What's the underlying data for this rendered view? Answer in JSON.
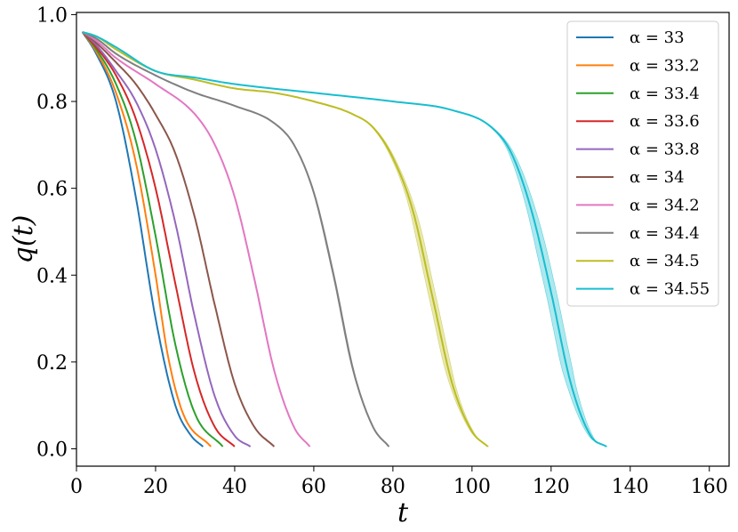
{
  "chart_data": {
    "type": "line",
    "xlabel": "t",
    "ylabel": "q(t)",
    "xlim": [
      0,
      165
    ],
    "ylim": [
      -0.04,
      1.005
    ],
    "xticks": [
      0,
      20,
      40,
      60,
      80,
      100,
      120,
      140,
      160
    ],
    "yticks": [
      0.0,
      0.2,
      0.4,
      0.6,
      0.8,
      1.0
    ],
    "xtick_labels": [
      "0",
      "20",
      "40",
      "60",
      "80",
      "100",
      "120",
      "140",
      "160"
    ],
    "ytick_labels": [
      "0.0",
      "0.2",
      "0.4",
      "0.6",
      "0.8",
      "1.0"
    ],
    "grid": false,
    "legend_position": "top-right",
    "series": [
      {
        "name": "α = 33",
        "color": "#1f77b4",
        "x_end": 32,
        "points": [
          [
            1.5,
            0.96
          ],
          [
            5,
            0.91
          ],
          [
            10,
            0.8
          ],
          [
            15,
            0.58
          ],
          [
            20,
            0.3
          ],
          [
            25,
            0.1
          ],
          [
            29,
            0.03
          ],
          [
            32,
            0.005
          ]
        ],
        "band": 0
      },
      {
        "name": "α = 33.2",
        "color": "#ff7f0e",
        "x_end": 34,
        "points": [
          [
            1.5,
            0.96
          ],
          [
            5,
            0.915
          ],
          [
            10,
            0.82
          ],
          [
            15,
            0.66
          ],
          [
            20,
            0.4
          ],
          [
            23,
            0.22
          ],
          [
            27,
            0.08
          ],
          [
            34,
            0.005
          ]
        ],
        "band": 0
      },
      {
        "name": "α = 33.4",
        "color": "#2ca02c",
        "x_end": 37,
        "points": [
          [
            1.5,
            0.96
          ],
          [
            5,
            0.92
          ],
          [
            10,
            0.84
          ],
          [
            15,
            0.71
          ],
          [
            20,
            0.49
          ],
          [
            25,
            0.24
          ],
          [
            30,
            0.08
          ],
          [
            37,
            0.005
          ]
        ],
        "band": 0
      },
      {
        "name": "α = 33.6",
        "color": "#d62728",
        "x_end": 40,
        "points": [
          [
            1.5,
            0.96
          ],
          [
            5,
            0.925
          ],
          [
            10,
            0.86
          ],
          [
            15,
            0.76
          ],
          [
            20,
            0.6
          ],
          [
            25,
            0.38
          ],
          [
            30,
            0.17
          ],
          [
            35,
            0.05
          ],
          [
            40,
            0.005
          ]
        ],
        "band": 0
      },
      {
        "name": "α = 33.8",
        "color": "#9467bd",
        "x_end": 44,
        "points": [
          [
            1.5,
            0.96
          ],
          [
            5,
            0.93
          ],
          [
            10,
            0.87
          ],
          [
            15,
            0.8
          ],
          [
            20,
            0.69
          ],
          [
            25,
            0.52
          ],
          [
            30,
            0.3
          ],
          [
            35,
            0.12
          ],
          [
            40,
            0.03
          ],
          [
            44,
            0.005
          ]
        ],
        "band": 0
      },
      {
        "name": "α = 34",
        "color": "#8c564b",
        "x_end": 50,
        "points": [
          [
            1.5,
            0.96
          ],
          [
            5,
            0.935
          ],
          [
            10,
            0.89
          ],
          [
            15,
            0.84
          ],
          [
            20,
            0.77
          ],
          [
            25,
            0.68
          ],
          [
            30,
            0.53
          ],
          [
            35,
            0.33
          ],
          [
            40,
            0.15
          ],
          [
            45,
            0.05
          ],
          [
            50,
            0.005
          ]
        ],
        "band": 0
      },
      {
        "name": "α = 34.2",
        "color": "#e377c2",
        "x_end": 59,
        "points": [
          [
            1.5,
            0.96
          ],
          [
            5,
            0.94
          ],
          [
            10,
            0.9
          ],
          [
            20,
            0.84
          ],
          [
            30,
            0.77
          ],
          [
            35,
            0.7
          ],
          [
            40,
            0.58
          ],
          [
            45,
            0.39
          ],
          [
            50,
            0.18
          ],
          [
            55,
            0.05
          ],
          [
            59,
            0.005
          ]
        ],
        "band": 0.006
      },
      {
        "name": "α = 34.4",
        "color": "#7f7f7f",
        "x_end": 79,
        "points": [
          [
            1.5,
            0.96
          ],
          [
            5,
            0.945
          ],
          [
            10,
            0.91
          ],
          [
            20,
            0.86
          ],
          [
            30,
            0.82
          ],
          [
            40,
            0.79
          ],
          [
            50,
            0.75
          ],
          [
            55,
            0.7
          ],
          [
            60,
            0.59
          ],
          [
            65,
            0.4
          ],
          [
            70,
            0.18
          ],
          [
            75,
            0.05
          ],
          [
            79,
            0.005
          ]
        ],
        "band": 0.01
      },
      {
        "name": "α = 34.5",
        "color": "#bcbd22",
        "x_end": 104,
        "points": [
          [
            1.5,
            0.96
          ],
          [
            5,
            0.95
          ],
          [
            10,
            0.92
          ],
          [
            20,
            0.87
          ],
          [
            30,
            0.85
          ],
          [
            40,
            0.83
          ],
          [
            50,
            0.82
          ],
          [
            60,
            0.8
          ],
          [
            70,
            0.77
          ],
          [
            75,
            0.74
          ],
          [
            80,
            0.67
          ],
          [
            85,
            0.55
          ],
          [
            90,
            0.35
          ],
          [
            95,
            0.15
          ],
          [
            100,
            0.04
          ],
          [
            104,
            0.005
          ]
        ],
        "band": 0.03
      },
      {
        "name": "α = 34.55",
        "color": "#17becf",
        "x_end": 134,
        "points": [
          [
            1.5,
            0.96
          ],
          [
            5,
            0.95
          ],
          [
            10,
            0.925
          ],
          [
            20,
            0.87
          ],
          [
            30,
            0.855
          ],
          [
            40,
            0.84
          ],
          [
            60,
            0.82
          ],
          [
            80,
            0.8
          ],
          [
            95,
            0.78
          ],
          [
            105,
            0.74
          ],
          [
            110,
            0.68
          ],
          [
            115,
            0.55
          ],
          [
            120,
            0.36
          ],
          [
            125,
            0.15
          ],
          [
            130,
            0.03
          ],
          [
            134,
            0.005
          ]
        ],
        "band": 0.045
      }
    ]
  }
}
